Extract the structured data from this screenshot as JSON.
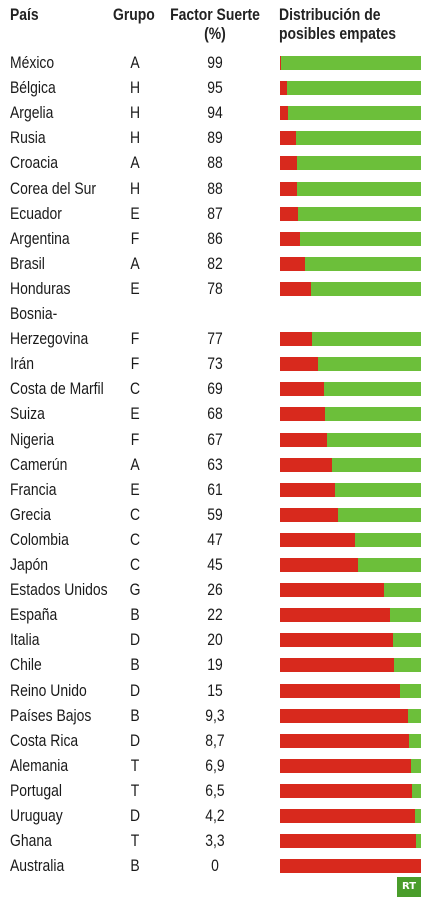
{
  "header": {
    "pais": "País",
    "grupo": "Grupo",
    "factor_line1": "Factor Suerte",
    "factor_line2": "(%)",
    "dist_line1": "Distribución de",
    "dist_line2": "posibles empates"
  },
  "colors": {
    "red": "#d8291d",
    "green": "#6cbf3a"
  },
  "chart_data": {
    "type": "bar",
    "title": "",
    "columns": [
      "País",
      "Grupo",
      "Factor Suerte (%)",
      "Distribución de posibles empates"
    ],
    "rows": [
      {
        "country": "México",
        "group": "A",
        "factor": "99",
        "red_share": 0.01
      },
      {
        "country": "Bélgica",
        "group": "H",
        "factor": "95",
        "red_share": 0.05
      },
      {
        "country": "Argelia",
        "group": "H",
        "factor": "94",
        "red_share": 0.06
      },
      {
        "country": "Rusia",
        "group": "H",
        "factor": "89",
        "red_share": 0.11
      },
      {
        "country": "Croacia",
        "group": "A",
        "factor": "88",
        "red_share": 0.12
      },
      {
        "country": "Corea del Sur",
        "group": "H",
        "factor": "88",
        "red_share": 0.12
      },
      {
        "country": "Ecuador",
        "group": "E",
        "factor": "87",
        "red_share": 0.13
      },
      {
        "country": "Argentina",
        "group": "F",
        "factor": "86",
        "red_share": 0.14
      },
      {
        "country": "Brasil",
        "group": "A",
        "factor": "82",
        "red_share": 0.18
      },
      {
        "country": "Honduras",
        "group": "E",
        "factor": "78",
        "red_share": 0.22
      },
      {
        "country": "Bosnia-Herzegovina",
        "country_line1": "Bosnia-",
        "country_line2": "Herzegovina",
        "group": "F",
        "factor": "77",
        "red_share": 0.23
      },
      {
        "country": "Irán",
        "group": "F",
        "factor": "73",
        "red_share": 0.27
      },
      {
        "country": "Costa de Marfil",
        "group": "C",
        "factor": "69",
        "red_share": 0.31
      },
      {
        "country": "Suiza",
        "group": "E",
        "factor": "68",
        "red_share": 0.32
      },
      {
        "country": "Nigeria",
        "group": "F",
        "factor": "67",
        "red_share": 0.33
      },
      {
        "country": "Camerún",
        "group": "A",
        "factor": "63",
        "red_share": 0.37
      },
      {
        "country": "Francia",
        "group": "E",
        "factor": "61",
        "red_share": 0.39
      },
      {
        "country": "Grecia",
        "group": "C",
        "factor": "59",
        "red_share": 0.41
      },
      {
        "country": "Colombia",
        "group": "C",
        "factor": "47",
        "red_share": 0.53
      },
      {
        "country": "Japón",
        "group": "C",
        "factor": "45",
        "red_share": 0.55
      },
      {
        "country": "Estados Unidos",
        "group": "G",
        "factor": "26",
        "red_share": 0.74
      },
      {
        "country": "España",
        "group": "B",
        "factor": "22",
        "red_share": 0.78
      },
      {
        "country": "Italia",
        "group": "D",
        "factor": "20",
        "red_share": 0.8
      },
      {
        "country": "Chile",
        "group": "B",
        "factor": "19",
        "red_share": 0.81
      },
      {
        "country": "Reino Unido",
        "group": "D",
        "factor": "15",
        "red_share": 0.85
      },
      {
        "country": "Países Bajos",
        "group": "B",
        "factor": "9,3",
        "red_share": 0.907
      },
      {
        "country": "Costa Rica",
        "group": "D",
        "factor": "8,7",
        "red_share": 0.913
      },
      {
        "country": "Alemania",
        "group": "T",
        "factor": "6,9",
        "red_share": 0.931
      },
      {
        "country": "Portugal",
        "group": "T",
        "factor": "6,5",
        "red_share": 0.935
      },
      {
        "country": "Uruguay",
        "group": "D",
        "factor": "4,2",
        "red_share": 0.958
      },
      {
        "country": "Ghana",
        "group": "T",
        "factor": "3,3",
        "red_share": 0.967
      },
      {
        "country": "Australia",
        "group": "B",
        "factor": "0",
        "red_share": 1.0
      }
    ]
  },
  "logo": {
    "text": "RT"
  }
}
